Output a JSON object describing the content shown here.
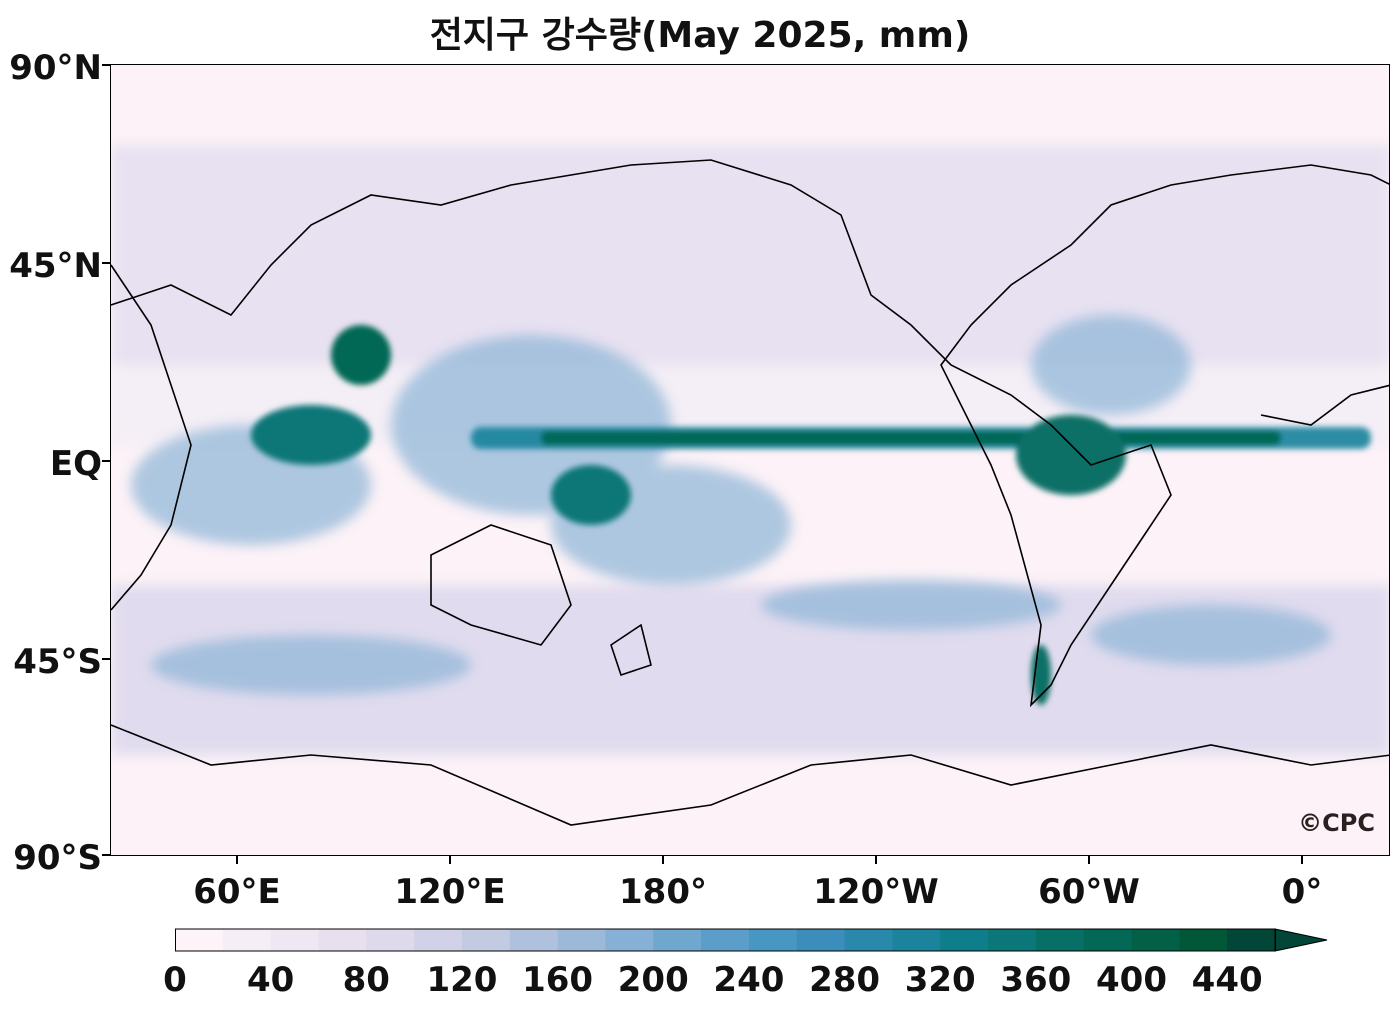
{
  "title": "전지구 강수량(May 2025, mm)",
  "credit": "©CPC",
  "axes": {
    "y_labels": [
      "90°N",
      "45°N",
      "EQ",
      "45°S",
      "90°S"
    ],
    "x_labels": [
      "60°E",
      "120°E",
      "180°",
      "120°W",
      "60°W",
      "0°"
    ]
  },
  "colorbar": {
    "labels": [
      "0",
      "40",
      "80",
      "120",
      "160",
      "200",
      "240",
      "280",
      "320",
      "360",
      "400",
      "440"
    ],
    "min": 0,
    "max": 460,
    "step": 20,
    "extend": "max",
    "colors": [
      "#fdf4f9",
      "#f6eef6",
      "#efe7f2",
      "#e8e0ef",
      "#ded9eb",
      "#d1d2e7",
      "#c2cbe2",
      "#b0c1dd",
      "#9cb9d9",
      "#86b0d5",
      "#6fa7cf",
      "#5b9ec9",
      "#4896c2",
      "#3b8dbb",
      "#2a88ab",
      "#1b839b",
      "#0f7e8b",
      "#0c7778",
      "#076f66",
      "#036855",
      "#016045",
      "#015838",
      "#014636"
    ]
  },
  "map": {
    "projection": "PlateCarree, central longitude 180°",
    "variable": "monthly precipitation",
    "units": "mm"
  }
}
